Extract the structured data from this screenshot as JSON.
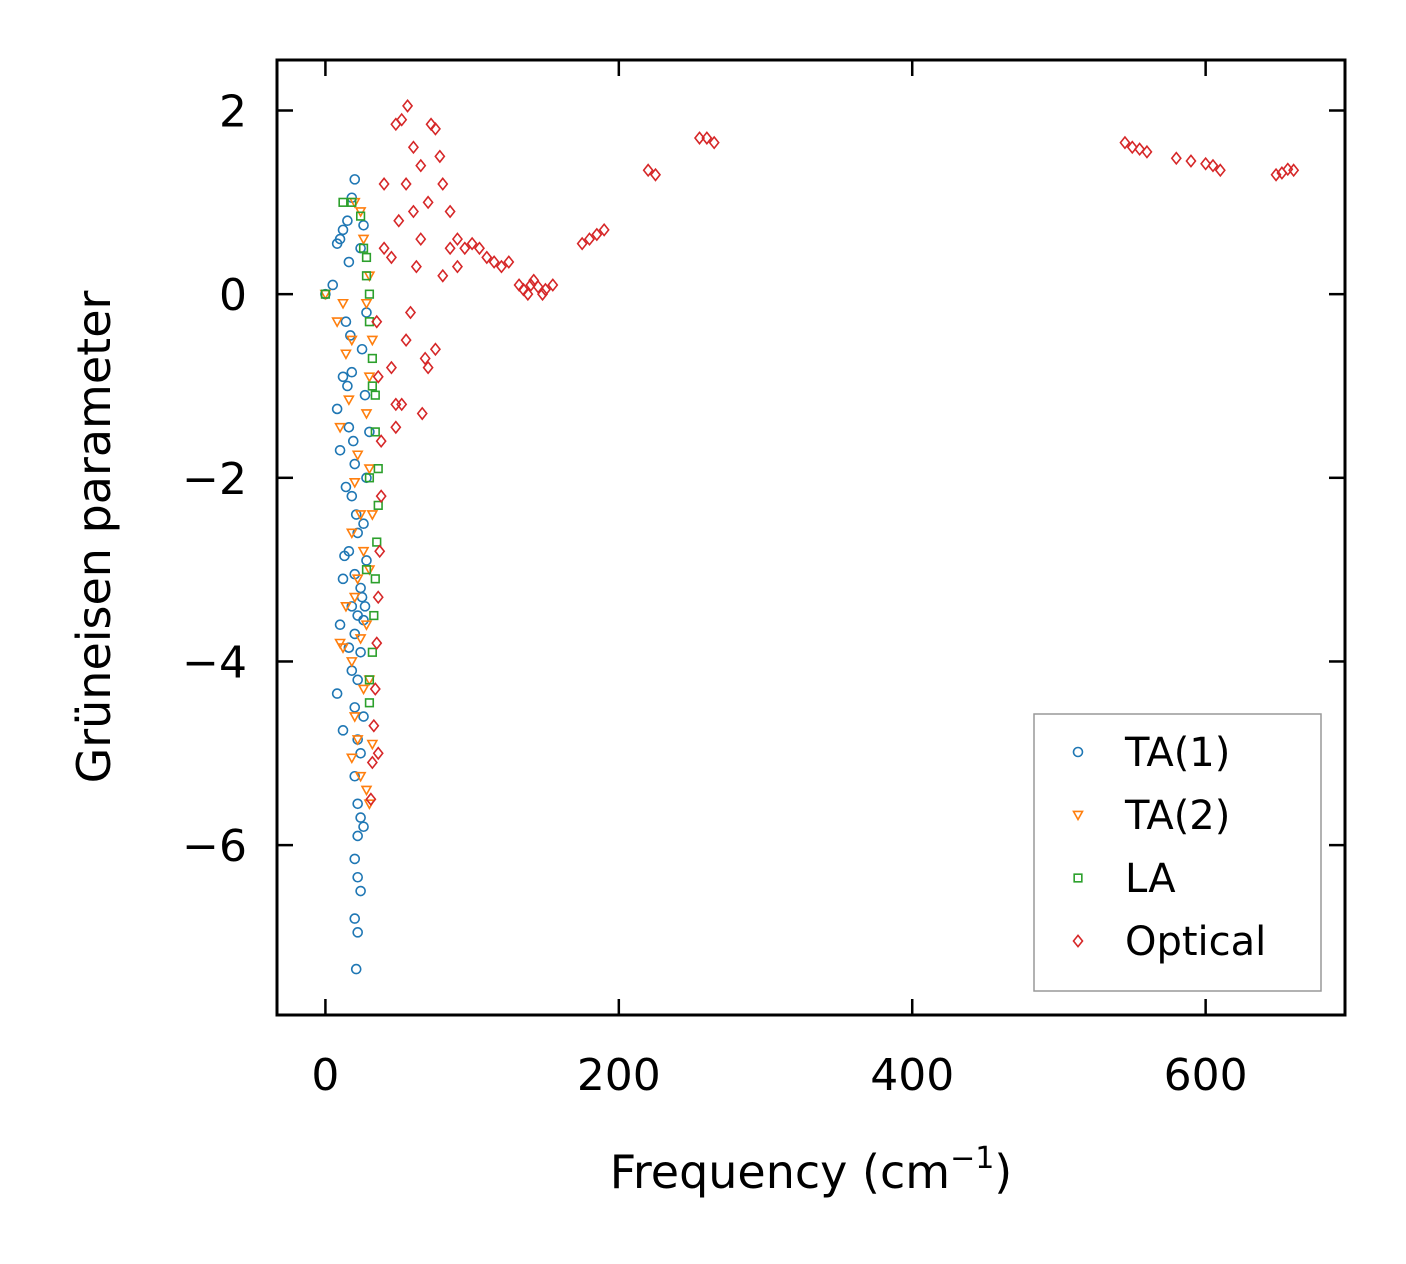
{
  "chart_data": {
    "type": "scatter",
    "title": "",
    "xlabel": "Frequency (cm",
    "xlabel_sup": "−1",
    "xlabel_suffix": ")",
    "ylabel": "Grüneisen parameter",
    "xlim": [
      -33,
      695
    ],
    "ylim": [
      -7.85,
      2.55
    ],
    "xticks": [
      0,
      200,
      400,
      600
    ],
    "xtick_labels": [
      "0",
      "200",
      "400",
      "600"
    ],
    "yticks": [
      -6,
      -4,
      -2,
      0,
      2
    ],
    "ytick_labels": [
      "−6",
      "−4",
      "−2",
      "0",
      "2"
    ],
    "legend_position": "lower-right",
    "series": [
      {
        "name": "TA(1)",
        "marker": "circle",
        "color": "#1f77b4",
        "points": [
          [
            0,
            0
          ],
          [
            5,
            0.1
          ],
          [
            8,
            0.55
          ],
          [
            10,
            0.6
          ],
          [
            12,
            0.7
          ],
          [
            15,
            0.8
          ],
          [
            18,
            1.05
          ],
          [
            20,
            1.25
          ],
          [
            16,
            0.35
          ],
          [
            14,
            -0.3
          ],
          [
            17,
            -0.45
          ],
          [
            18,
            -0.85
          ],
          [
            12,
            -0.9
          ],
          [
            15,
            -1.0
          ],
          [
            8,
            -1.25
          ],
          [
            16,
            -1.45
          ],
          [
            19,
            -1.6
          ],
          [
            10,
            -1.7
          ],
          [
            20,
            -1.85
          ],
          [
            14,
            -2.1
          ],
          [
            18,
            -2.2
          ],
          [
            21,
            -2.4
          ],
          [
            22,
            -2.6
          ],
          [
            16,
            -2.8
          ],
          [
            13,
            -2.85
          ],
          [
            20,
            -3.05
          ],
          [
            12,
            -3.1
          ],
          [
            24,
            -3.2
          ],
          [
            18,
            -3.4
          ],
          [
            22,
            -3.5
          ],
          [
            26,
            -3.55
          ],
          [
            10,
            -3.6
          ],
          [
            20,
            -3.7
          ],
          [
            16,
            -3.85
          ],
          [
            24,
            -3.9
          ],
          [
            18,
            -4.1
          ],
          [
            22,
            -4.2
          ],
          [
            8,
            -4.35
          ],
          [
            20,
            -4.5
          ],
          [
            26,
            -4.6
          ],
          [
            12,
            -4.75
          ],
          [
            22,
            -4.85
          ],
          [
            24,
            -5.0
          ],
          [
            20,
            -5.25
          ],
          [
            22,
            -5.55
          ],
          [
            24,
            -5.7
          ],
          [
            26,
            -5.8
          ],
          [
            22,
            -5.9
          ],
          [
            20,
            -6.15
          ],
          [
            22,
            -6.35
          ],
          [
            24,
            -6.5
          ],
          [
            20,
            -6.8
          ],
          [
            22,
            -6.95
          ],
          [
            21,
            -7.35
          ],
          [
            25,
            -3.3
          ],
          [
            27,
            -3.4
          ],
          [
            28,
            -2.9
          ],
          [
            26,
            -2.5
          ],
          [
            28,
            -2.0
          ],
          [
            30,
            -1.5
          ],
          [
            27,
            -1.1
          ],
          [
            25,
            -0.6
          ],
          [
            28,
            -0.2
          ],
          [
            24,
            0.5
          ],
          [
            26,
            0.75
          ]
        ]
      },
      {
        "name": "TA(2)",
        "marker": "triangle-down",
        "color": "#ff7f0e",
        "points": [
          [
            0,
            0
          ],
          [
            8,
            -0.3
          ],
          [
            12,
            -0.1
          ],
          [
            14,
            -0.65
          ],
          [
            18,
            -0.5
          ],
          [
            10,
            -1.45
          ],
          [
            16,
            -1.15
          ],
          [
            22,
            -1.75
          ],
          [
            20,
            -2.05
          ],
          [
            24,
            -2.4
          ],
          [
            18,
            -2.6
          ],
          [
            26,
            -2.8
          ],
          [
            22,
            -3.1
          ],
          [
            14,
            -3.4
          ],
          [
            20,
            -3.3
          ],
          [
            10,
            -3.8
          ],
          [
            12,
            -3.85
          ],
          [
            24,
            -3.75
          ],
          [
            18,
            -4.0
          ],
          [
            26,
            -4.3
          ],
          [
            20,
            -4.6
          ],
          [
            22,
            -4.85
          ],
          [
            18,
            -5.05
          ],
          [
            24,
            -5.25
          ],
          [
            28,
            -5.4
          ],
          [
            30,
            -5.55
          ],
          [
            32,
            -4.9
          ],
          [
            30,
            -4.2
          ],
          [
            28,
            -3.6
          ],
          [
            30,
            -3.0
          ],
          [
            32,
            -2.4
          ],
          [
            30,
            -1.9
          ],
          [
            28,
            -1.3
          ],
          [
            30,
            -0.9
          ],
          [
            32,
            -0.5
          ],
          [
            28,
            -0.1
          ],
          [
            30,
            0.2
          ],
          [
            26,
            0.6
          ],
          [
            24,
            0.9
          ],
          [
            20,
            1.0
          ]
        ]
      },
      {
        "name": "LA",
        "marker": "square",
        "color": "#2ca02c",
        "points": [
          [
            0,
            0
          ],
          [
            12,
            1.0
          ],
          [
            18,
            1.0
          ],
          [
            24,
            0.85
          ],
          [
            26,
            0.5
          ],
          [
            28,
            0.2
          ],
          [
            30,
            -0.3
          ],
          [
            32,
            -0.7
          ],
          [
            34,
            -1.1
          ],
          [
            34,
            -1.5
          ],
          [
            36,
            -1.9
          ],
          [
            36,
            -2.3
          ],
          [
            35,
            -2.7
          ],
          [
            34,
            -3.1
          ],
          [
            33,
            -3.5
          ],
          [
            32,
            -3.9
          ],
          [
            30,
            -4.2
          ],
          [
            30,
            -4.45
          ],
          [
            28,
            -3.0
          ],
          [
            30,
            -2.0
          ],
          [
            32,
            -1.0
          ],
          [
            30,
            0.0
          ],
          [
            28,
            0.4
          ]
        ]
      },
      {
        "name": "Optical",
        "marker": "diamond",
        "color": "#d62728",
        "points": [
          [
            35,
            -0.3
          ],
          [
            36,
            -0.9
          ],
          [
            38,
            -1.6
          ],
          [
            38,
            -2.2
          ],
          [
            37,
            -2.8
          ],
          [
            36,
            -3.3
          ],
          [
            35,
            -3.8
          ],
          [
            34,
            -4.3
          ],
          [
            33,
            -4.7
          ],
          [
            32,
            -5.1
          ],
          [
            31,
            -5.5
          ],
          [
            36,
            -5.0
          ],
          [
            40,
            0.5
          ],
          [
            40,
            1.2
          ],
          [
            45,
            -0.8
          ],
          [
            48,
            -1.2
          ],
          [
            48,
            -1.45
          ],
          [
            52,
            -1.2
          ],
          [
            48,
            1.85
          ],
          [
            52,
            1.9
          ],
          [
            56,
            2.05
          ],
          [
            60,
            1.6
          ],
          [
            65,
            1.4
          ],
          [
            68,
            -0.7
          ],
          [
            70,
            -0.8
          ],
          [
            66,
            -1.3
          ],
          [
            72,
            1.85
          ],
          [
            75,
            1.8
          ],
          [
            78,
            1.5
          ],
          [
            80,
            1.2
          ],
          [
            85,
            0.9
          ],
          [
            90,
            0.6
          ],
          [
            75,
            -0.6
          ],
          [
            45,
            0.4
          ],
          [
            50,
            0.8
          ],
          [
            55,
            1.2
          ],
          [
            60,
            0.9
          ],
          [
            62,
            0.3
          ],
          [
            58,
            -0.2
          ],
          [
            55,
            -0.5
          ],
          [
            65,
            0.6
          ],
          [
            70,
            1.0
          ],
          [
            80,
            0.2
          ],
          [
            85,
            0.5
          ],
          [
            90,
            0.3
          ],
          [
            95,
            0.5
          ],
          [
            100,
            0.55
          ],
          [
            105,
            0.5
          ],
          [
            110,
            0.4
          ],
          [
            115,
            0.35
          ],
          [
            120,
            0.3
          ],
          [
            125,
            0.35
          ],
          [
            132,
            0.1
          ],
          [
            135,
            0.05
          ],
          [
            138,
            0.0
          ],
          [
            140,
            0.1
          ],
          [
            142,
            0.15
          ],
          [
            145,
            0.08
          ],
          [
            148,
            0.0
          ],
          [
            150,
            0.05
          ],
          [
            155,
            0.1
          ],
          [
            175,
            0.55
          ],
          [
            180,
            0.6
          ],
          [
            185,
            0.65
          ],
          [
            190,
            0.7
          ],
          [
            220,
            1.35
          ],
          [
            225,
            1.3
          ],
          [
            255,
            1.7
          ],
          [
            260,
            1.7
          ],
          [
            265,
            1.65
          ],
          [
            545,
            1.65
          ],
          [
            550,
            1.6
          ],
          [
            555,
            1.58
          ],
          [
            560,
            1.55
          ],
          [
            580,
            1.48
          ],
          [
            590,
            1.45
          ],
          [
            600,
            1.42
          ],
          [
            605,
            1.4
          ],
          [
            610,
            1.35
          ],
          [
            648,
            1.3
          ],
          [
            652,
            1.32
          ],
          [
            656,
            1.36
          ],
          [
            660,
            1.35
          ]
        ]
      }
    ]
  }
}
